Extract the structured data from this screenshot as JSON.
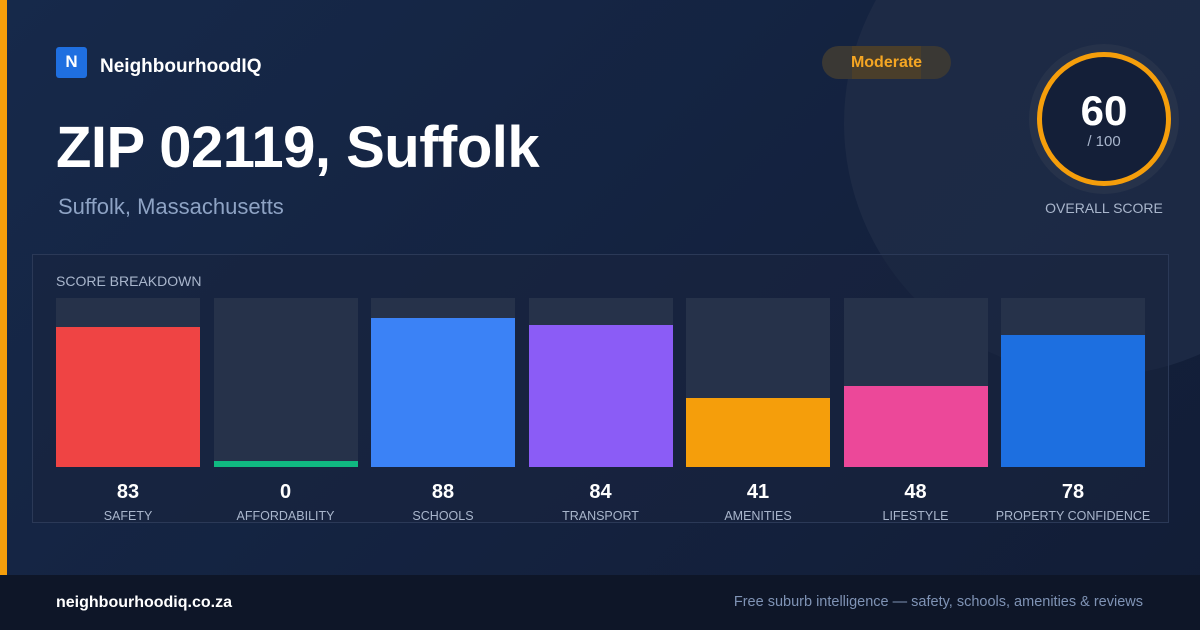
{
  "brand": {
    "logo_letter": "N",
    "name": "NeighbourhoodIQ"
  },
  "badge": {
    "label": "Moderate",
    "color": "#f5a623"
  },
  "header": {
    "title": "ZIP 02119, Suffolk",
    "subtitle": "Suffolk, Massachusetts"
  },
  "overall": {
    "value": "60",
    "max": "/ 100",
    "label": "OVERALL SCORE",
    "color": "#f59e0b"
  },
  "breakdown": {
    "title": "SCORE BREAKDOWN",
    "max_value": 100,
    "items": [
      {
        "label": "SAFETY",
        "value": 83,
        "color": "#ef4444"
      },
      {
        "label": "AFFORDABILITY",
        "value": 0,
        "color": "#10b981"
      },
      {
        "label": "SCHOOLS",
        "value": 88,
        "color": "#3b82f6"
      },
      {
        "label": "TRANSPORT",
        "value": 84,
        "color": "#8b5cf6"
      },
      {
        "label": "AMENITIES",
        "value": 41,
        "color": "#f59e0b"
      },
      {
        "label": "LIFESTYLE",
        "value": 48,
        "color": "#ec4899"
      },
      {
        "label": "PROPERTY CONFIDENCE",
        "value": 78,
        "color": "#1d6fe0"
      }
    ]
  },
  "footer": {
    "url": "neighbourhoodiq.co.za",
    "tagline": "Free suburb intelligence — safety, schools, amenities & reviews"
  }
}
